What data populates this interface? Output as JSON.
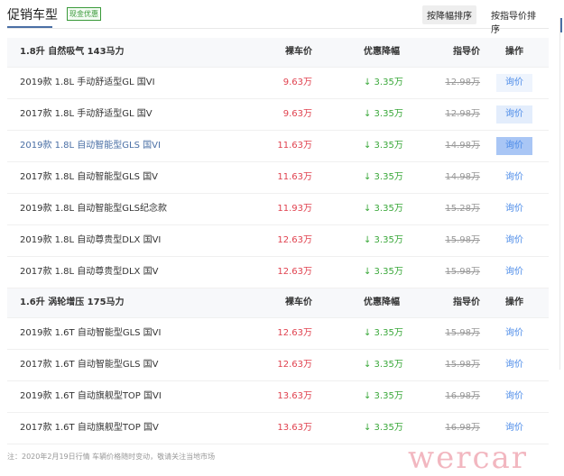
{
  "header": {
    "title": "促销车型",
    "badge": "现金优惠",
    "sort_by_discount": "按降幅排序",
    "sort_by_guide": "按指导价排序"
  },
  "columns": {
    "price": "裸车价",
    "discount": "优惠降幅",
    "guide": "指导价",
    "action": "操作"
  },
  "groups": [
    {
      "label": "1.8升 自然吸气 143马力",
      "rows": [
        {
          "name": "2019款 1.8L 手动舒适型GL 国VI",
          "price": "9.63万",
          "discount": "↓ 3.35万",
          "guide": "12.98万",
          "action": "询价"
        },
        {
          "name": "2017款 1.8L 手动舒适型GL 国V",
          "price": "9.63万",
          "discount": "↓ 3.35万",
          "guide": "12.98万",
          "action": "询价"
        },
        {
          "name": "2019款 1.8L 自动智能型GLS 国VI",
          "price": "11.63万",
          "discount": "↓ 3.35万",
          "guide": "14.98万",
          "action": "询价"
        },
        {
          "name": "2017款 1.8L 自动智能型GLS 国V",
          "price": "11.63万",
          "discount": "↓ 3.35万",
          "guide": "14.98万",
          "action": "询价"
        },
        {
          "name": "2019款 1.8L 自动智能型GLS纪念款",
          "price": "11.93万",
          "discount": "↓ 3.35万",
          "guide": "15.28万",
          "action": "询价"
        },
        {
          "name": "2019款 1.8L 自动尊贵型DLX 国VI",
          "price": "12.63万",
          "discount": "↓ 3.35万",
          "guide": "15.98万",
          "action": "询价"
        },
        {
          "name": "2017款 1.8L 自动尊贵型DLX 国V",
          "price": "12.63万",
          "discount": "↓ 3.35万",
          "guide": "15.98万",
          "action": "询价"
        }
      ]
    },
    {
      "label": "1.6升 涡轮增压 175马力",
      "rows": [
        {
          "name": "2019款 1.6T 自动智能型GLS 国VI",
          "price": "12.63万",
          "discount": "↓ 3.35万",
          "guide": "15.98万",
          "action": "询价"
        },
        {
          "name": "2017款 1.6T 自动智能型GLS 国V",
          "price": "12.63万",
          "discount": "↓ 3.35万",
          "guide": "15.98万",
          "action": "询价"
        },
        {
          "name": "2019款 1.6T 自动旗舰型TOP 国VI",
          "price": "13.63万",
          "discount": "↓ 3.35万",
          "guide": "16.98万",
          "action": "询价"
        },
        {
          "name": "2017款 1.6T 自动旗舰型TOP 国V",
          "price": "13.63万",
          "discount": "↓ 3.35万",
          "guide": "16.98万",
          "action": "询价"
        }
      ]
    }
  ],
  "button_backgrounds": [
    "#eef4fd",
    "#e3edfc",
    "#a9c6f5"
  ],
  "note": "注：2020年2月19日行情 车辆价格随时变动，敬请关注当地市场",
  "watermark": "wercar"
}
